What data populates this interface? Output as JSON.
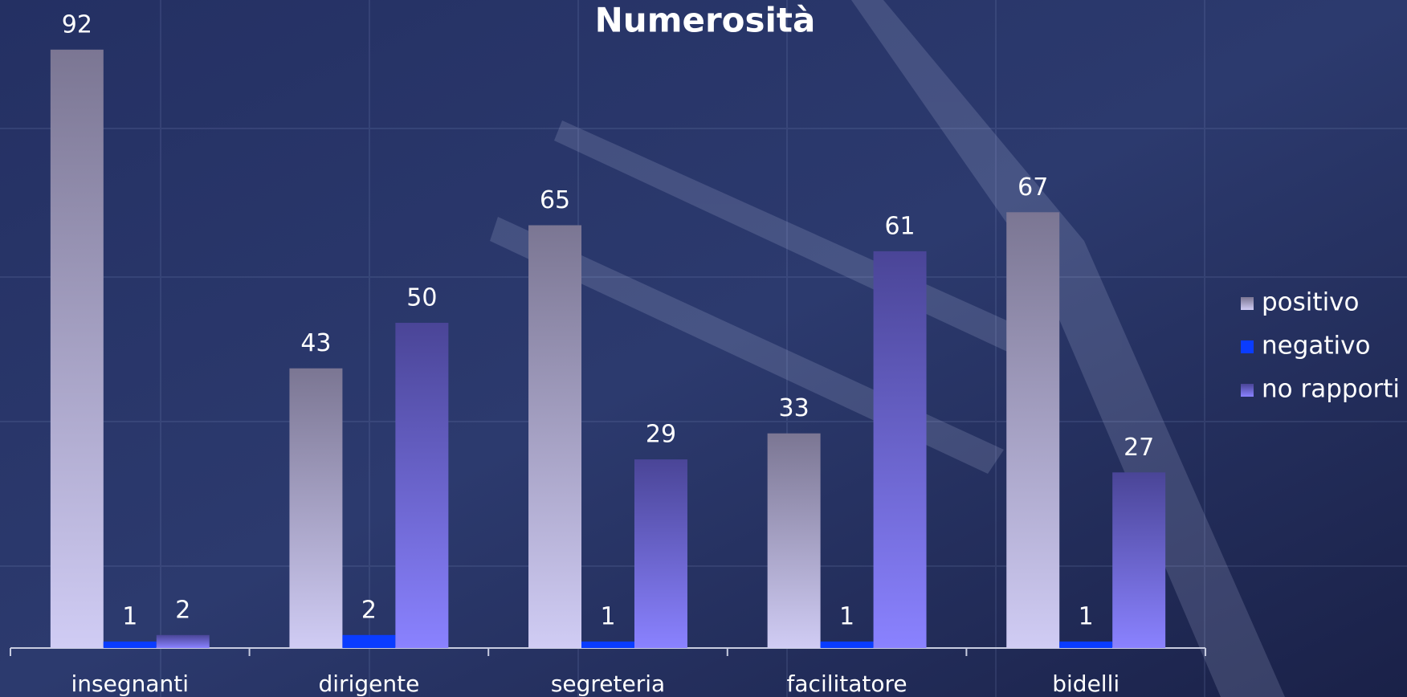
{
  "chart_data": {
    "type": "bar",
    "title": "Numerosità",
    "categories": [
      "insegnanti",
      "dirigente",
      "segreteria",
      "facilitatore",
      "bidelli"
    ],
    "series": [
      {
        "name": "positivo",
        "color": "#7b7693",
        "values": [
          92,
          43,
          65,
          33,
          67
        ]
      },
      {
        "name": "negativo",
        "color": "#0a3cff",
        "values": [
          1,
          2,
          1,
          1,
          1
        ]
      },
      {
        "name": "no rapporti",
        "color": "#4a4597",
        "values": [
          2,
          50,
          29,
          61,
          27
        ]
      }
    ],
    "ylim": [
      0,
      100
    ],
    "legend": "right"
  }
}
